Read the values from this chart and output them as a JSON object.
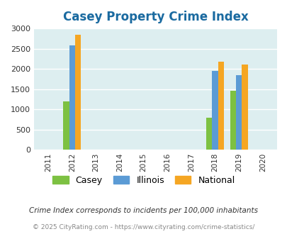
{
  "title": "Casey Property Crime Index",
  "title_color": "#1a6aa0",
  "years": [
    2011,
    2012,
    2013,
    2014,
    2015,
    2016,
    2017,
    2018,
    2019,
    2020
  ],
  "data": {
    "2012": {
      "Casey": 1200,
      "Illinois": 2580,
      "National": 2850
    },
    "2018": {
      "Casey": 800,
      "Illinois": 1950,
      "National": 2175
    },
    "2019": {
      "Casey": 1450,
      "Illinois": 1850,
      "National": 2100
    }
  },
  "bar_colors": {
    "Casey": "#7dc142",
    "Illinois": "#5b9bd5",
    "National": "#f5a623"
  },
  "ylim": [
    0,
    3000
  ],
  "yticks": [
    0,
    500,
    1000,
    1500,
    2000,
    2500,
    3000
  ],
  "background_color": "#ddeef0",
  "grid_color": "#ffffff",
  "bar_width": 0.25,
  "legend_labels": [
    "Casey",
    "Illinois",
    "National"
  ],
  "footnote1": "Crime Index corresponds to incidents per 100,000 inhabitants",
  "footnote2": "© 2025 CityRating.com - https://www.cityrating.com/crime-statistics/",
  "footnote1_color": "#333333",
  "footnote2_color": "#888888"
}
